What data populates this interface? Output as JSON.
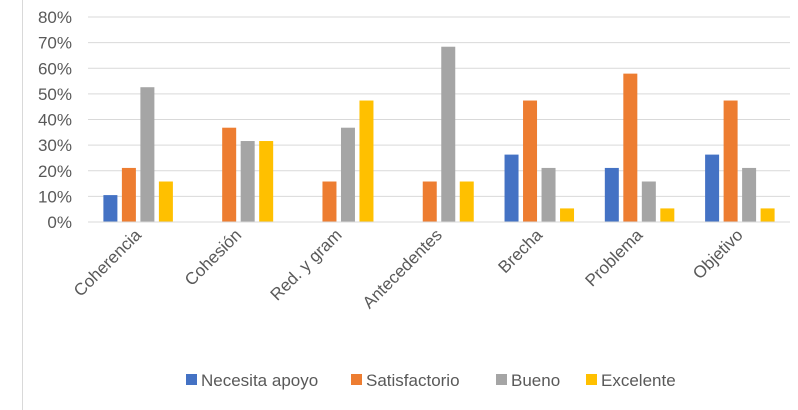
{
  "chart_data": {
    "type": "bar",
    "title": "",
    "xlabel": "",
    "ylabel": "",
    "ylim": [
      0,
      80
    ],
    "ytick_step": 10,
    "ytick_suffix": "%",
    "grid": true,
    "legend_position": "bottom",
    "categories": [
      "Coherencia",
      "Cohesión",
      "Red. y gram",
      "Antecedentes",
      "Brecha",
      "Problema",
      "Objetivo"
    ],
    "series": [
      {
        "name": "Necesita apoyo",
        "color": "#4472c4",
        "values": [
          10.5,
          0,
          0,
          0,
          26.3,
          21.1,
          26.3
        ]
      },
      {
        "name": "Satisfactorio",
        "color": "#ed7d31",
        "values": [
          21.1,
          36.8,
          15.8,
          15.8,
          47.4,
          57.9,
          47.4
        ]
      },
      {
        "name": "Bueno",
        "color": "#a5a5a5",
        "values": [
          52.6,
          31.6,
          36.8,
          68.4,
          21.1,
          15.8,
          21.1
        ]
      },
      {
        "name": "Excelente",
        "color": "#ffc000",
        "values": [
          15.8,
          31.6,
          47.4,
          15.8,
          5.3,
          5.3,
          5.3
        ]
      }
    ]
  }
}
